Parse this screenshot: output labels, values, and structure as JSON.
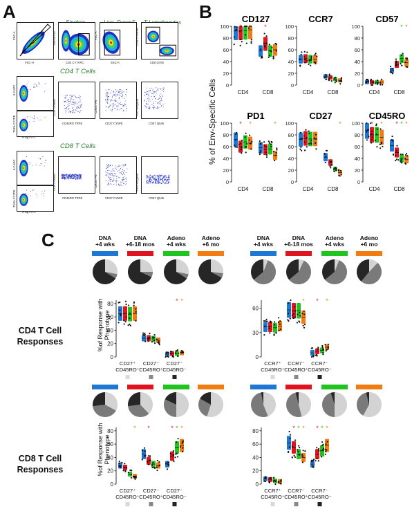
{
  "panel_a": {
    "letter": "A",
    "gates": {
      "singlets": "Singlets",
      "live": "Live, DumpS",
      "tlymph": "T Lymphocytes"
    },
    "cd4_label": "CD4 T Cells",
    "cd8_label": "CD8 T Cells",
    "axes": {
      "fsc_a": "FSC-A",
      "fsc_h": "FSC-H",
      "vivid": "Vivid 8/419",
      "cd3": "CD3 CY7APC",
      "ssc_a": "SSC-A",
      "cd4": "CD4 CY5SPE",
      "cd8": "CD8 Q705",
      "il2": "IL2 APC",
      "tnfa": "TNFa CY7PE",
      "ifng": "IFNg FITC",
      "ccr7": "CCR7 AX680",
      "cd45ro": "CD45RO TRPE",
      "cd157": "CD157 PE",
      "cd27": "CD27 CY5PE",
      "pd1": "PD1 SAQ605",
      "cd57": "CD57 Q545"
    }
  },
  "panel_b": {
    "letter": "B",
    "ylabel": "% of Env-Specific Cells",
    "colors": {
      "dna4": "#1f77d4",
      "dna6": "#e0141e",
      "ad4": "#1fc41f",
      "ad6": "#f07c12"
    }
  },
  "panel_c": {
    "letter": "C",
    "groups": [
      {
        "l1": "DNA",
        "l2": "+4 wks",
        "color": "#1f77d4"
      },
      {
        "l1": "DNA",
        "l2": "+6-18 mos",
        "color": "#e0141e"
      },
      {
        "l1": "Adeno",
        "l2": "+4 wks",
        "color": "#1fc41f"
      },
      {
        "l1": "Adeno",
        "l2": "+6 mo",
        "color": "#f07c12"
      }
    ],
    "cd4_label_1": "CD4 T Cell",
    "cd4_label_2": "Responses",
    "cd8_label_1": "CD8 T Cell",
    "cd8_label_2": "Responses",
    "ylabel_1": "%of Response with",
    "ylabel_2": "Phenotype"
  },
  "chart_data": [
    {
      "type": "scatter",
      "title": "CD127",
      "categories": [
        "CD4",
        "CD8"
      ],
      "ylim": [
        0,
        100
      ],
      "yticks": [
        0,
        20,
        40,
        60,
        80,
        100
      ],
      "series": [
        {
          "color": "#1f77d4",
          "values": [
            92,
            58
          ]
        },
        {
          "color": "#e0141e",
          "values": [
            92,
            70
          ]
        },
        {
          "color": "#1fc41f",
          "values": [
            93,
            58
          ]
        },
        {
          "color": "#f07c12",
          "values": [
            94,
            60
          ]
        }
      ],
      "stars": [
        {
          "cat": 0,
          "series": 1,
          "color": "#e0141e"
        },
        {
          "cat": 0,
          "series": 3,
          "color": "#f07c12"
        },
        {
          "cat": 1,
          "series": 1,
          "color": "#e0141e"
        }
      ]
    },
    {
      "type": "scatter",
      "title": "CCR7",
      "categories": [
        "CD4",
        "CD8"
      ],
      "ylim": [
        0,
        100
      ],
      "yticks": [
        0,
        20,
        40,
        60,
        80,
        100
      ],
      "series": [
        {
          "color": "#1f77d4",
          "values": [
            44,
            15
          ]
        },
        {
          "color": "#e0141e",
          "values": [
            45,
            13
          ]
        },
        {
          "color": "#1fc41f",
          "values": [
            44,
            10
          ]
        },
        {
          "color": "#f07c12",
          "values": [
            44,
            8
          ]
        }
      ],
      "stars": []
    },
    {
      "type": "scatter",
      "title": "CD57",
      "categories": [
        "CD4",
        "CD8"
      ],
      "ylim": [
        0,
        100
      ],
      "yticks": [
        0,
        20,
        40,
        60,
        80,
        100
      ],
      "series": [
        {
          "color": "#1f77d4",
          "values": [
            5,
            25
          ]
        },
        {
          "color": "#e0141e",
          "values": [
            5,
            35
          ]
        },
        {
          "color": "#1fc41f",
          "values": [
            5,
            45
          ]
        },
        {
          "color": "#f07c12",
          "values": [
            5,
            38
          ]
        }
      ],
      "stars": [
        {
          "cat": 1,
          "series": 2,
          "color": "#1fc41f"
        },
        {
          "cat": 1,
          "series": 3,
          "color": "#f07c12"
        }
      ]
    },
    {
      "type": "scatter",
      "title": "PD1",
      "categories": [
        "CD4",
        "CD8"
      ],
      "ylim": [
        0,
        100
      ],
      "yticks": [
        0,
        20,
        40,
        60,
        80,
        100
      ],
      "series": [
        {
          "color": "#1f77d4",
          "values": [
            72,
            58
          ]
        },
        {
          "color": "#e0141e",
          "values": [
            60,
            55
          ]
        },
        {
          "color": "#1fc41f",
          "values": [
            68,
            56
          ]
        },
        {
          "color": "#f07c12",
          "values": [
            66,
            45
          ]
        }
      ],
      "stars": [
        {
          "cat": 0,
          "series": 1,
          "color": "#e0141e"
        },
        {
          "cat": 0,
          "series": 3,
          "color": "#f07c12"
        },
        {
          "cat": 1,
          "series": 3,
          "color": "#f07c12"
        }
      ]
    },
    {
      "type": "scatter",
      "title": "CD27",
      "categories": [
        "CD4",
        "CD8"
      ],
      "ylim": [
        0,
        100
      ],
      "yticks": [
        0,
        20,
        40,
        60,
        80,
        100
      ],
      "series": [
        {
          "color": "#1f77d4",
          "values": [
            72,
            42
          ]
        },
        {
          "color": "#e0141e",
          "values": [
            74,
            33
          ]
        },
        {
          "color": "#1fc41f",
          "values": [
            73,
            22
          ]
        },
        {
          "color": "#f07c12",
          "values": [
            73,
            16
          ]
        }
      ],
      "stars": [
        {
          "cat": 1,
          "series": 3,
          "color": "#f07c12"
        }
      ]
    },
    {
      "type": "scatter",
      "title": "CD45RO",
      "categories": [
        "CD4",
        "CD8"
      ],
      "ylim": [
        0,
        100
      ],
      "yticks": [
        0,
        20,
        40,
        60,
        80,
        100
      ],
      "series": [
        {
          "color": "#1f77d4",
          "values": [
            88,
            62
          ]
        },
        {
          "color": "#e0141e",
          "values": [
            80,
            50
          ]
        },
        {
          "color": "#1fc41f",
          "values": [
            80,
            40
          ]
        },
        {
          "color": "#f07c12",
          "values": [
            76,
            38
          ]
        }
      ],
      "stars": [
        {
          "cat": 0,
          "series": 1,
          "color": "#e0141e"
        },
        {
          "cat": 0,
          "series": 3,
          "color": "#f07c12"
        },
        {
          "cat": 1,
          "series": 1,
          "color": "#e0141e"
        },
        {
          "cat": 1,
          "series": 2,
          "color": "#1fc41f"
        },
        {
          "cat": 1,
          "series": 3,
          "color": "#f07c12"
        }
      ]
    },
    {
      "type": "scatter",
      "categories": [
        "CD27+ CD45RO+",
        "CD27- CD45RO+",
        "CD27- CD45RO-"
      ],
      "cat_l1": [
        "CD27⁺",
        "CD27⁻",
        "CD27⁻"
      ],
      "cat_l2": [
        "CD45RO⁺",
        "CD45RO⁺",
        "CD45RO⁻"
      ],
      "ylim": [
        0,
        85
      ],
      "yticks": [
        0,
        20,
        40,
        60,
        80
      ],
      "series": [
        {
          "color": "#1f77d4",
          "values": [
            65,
            28,
            4
          ]
        },
        {
          "color": "#e0141e",
          "values": [
            65,
            28,
            5
          ]
        },
        {
          "color": "#1fc41f",
          "values": [
            64,
            27,
            5
          ]
        },
        {
          "color": "#f07c12",
          "values": [
            65,
            25,
            6
          ]
        }
      ],
      "stars": [
        {
          "cat": 2,
          "series": 2,
          "color": "#e0141e"
        },
        {
          "cat": 2,
          "series": 3,
          "color": "#f07c12"
        }
      ],
      "pies": [
        [
          0.28,
          0.06,
          0.66
        ],
        [
          0.25,
          0.07,
          0.68
        ],
        [
          0.28,
          0.06,
          0.66
        ],
        [
          0.27,
          0.06,
          0.67
        ]
      ]
    },
    {
      "type": "scatter",
      "categories": [
        "CCR7+ CD45RO+",
        "CCR7- CD45RO+",
        "CCR7- CD45RO-"
      ],
      "cat_l1": [
        "CCR7⁺",
        "CCR7⁻",
        "CCR7⁻"
      ],
      "cat_l2": [
        "CD45RO⁺",
        "CD45RO⁺",
        "CD45RO⁻"
      ],
      "ylim": [
        0,
        70
      ],
      "yticks": [
        0,
        30,
        60
      ],
      "series": [
        {
          "color": "#1f77d4",
          "values": [
            37,
            58,
            5
          ]
        },
        {
          "color": "#e0141e",
          "values": [
            37,
            57,
            7
          ]
        },
        {
          "color": "#1fc41f",
          "values": [
            36,
            57,
            8
          ]
        },
        {
          "color": "#f07c12",
          "values": [
            38,
            49,
            12
          ]
        }
      ],
      "stars": [
        {
          "cat": 1,
          "series": 3,
          "color": "#f07c12"
        },
        {
          "cat": 2,
          "series": 1,
          "color": "#e0141e"
        },
        {
          "cat": 2,
          "series": 3,
          "color": "#f07c12"
        }
      ],
      "pies": [
        [
          0.06,
          0.58,
          0.36
        ],
        [
          0.07,
          0.57,
          0.36
        ],
        [
          0.06,
          0.58,
          0.36
        ],
        [
          0.12,
          0.49,
          0.39
        ]
      ]
    },
    {
      "type": "scatter",
      "categories": [
        "CD27+ CD45RO+",
        "CD27- CD45RO+",
        "CD27- CD45RO-"
      ],
      "cat_l1": [
        "CD27⁺",
        "CD27⁻",
        "CD27⁻"
      ],
      "cat_l2": [
        "CD45RO⁺",
        "CD45RO⁺",
        "CD45RO⁻"
      ],
      "ylim": [
        0,
        85
      ],
      "yticks": [
        0,
        20,
        40,
        60,
        80
      ],
      "series": [
        {
          "color": "#1f77d4",
          "values": [
            28,
            45,
            30
          ]
        },
        {
          "color": "#e0141e",
          "values": [
            25,
            35,
            42
          ]
        },
        {
          "color": "#1fc41f",
          "values": [
            15,
            30,
            55
          ]
        },
        {
          "color": "#f07c12",
          "values": [
            12,
            28,
            58
          ]
        }
      ],
      "stars": [
        {
          "cat": 0,
          "series": 3,
          "color": "#f07c12"
        },
        {
          "cat": 1,
          "series": 1,
          "color": "#e0141e"
        },
        {
          "cat": 2,
          "series": 1,
          "color": "#e0141e"
        },
        {
          "cat": 2,
          "series": 2,
          "color": "#1fc41f"
        },
        {
          "cat": 2,
          "series": 3,
          "color": "#f07c12"
        }
      ],
      "pies": [
        [
          0.33,
          0.4,
          0.27
        ],
        [
          0.38,
          0.35,
          0.27
        ],
        [
          0.5,
          0.32,
          0.18
        ],
        [
          0.55,
          0.28,
          0.17
        ]
      ]
    },
    {
      "type": "scatter",
      "categories": [
        "CCR7+ CD45RO+",
        "CCR7- CD45RO+",
        "CCR7- CD45RO-"
      ],
      "cat_l1": [
        "CCR7⁺",
        "CCR7⁻",
        "CCR7⁻"
      ],
      "cat_l2": [
        "CD45RO⁺",
        "CD45RO⁺",
        "CD45RO⁻"
      ],
      "ylim": [
        0,
        85
      ],
      "yticks": [
        0,
        20,
        40,
        60,
        80
      ],
      "series": [
        {
          "color": "#1f77d4",
          "values": [
            8,
            62,
            30
          ]
        },
        {
          "color": "#e0141e",
          "values": [
            7,
            55,
            45
          ]
        },
        {
          "color": "#1fc41f",
          "values": [
            5,
            45,
            50
          ]
        },
        {
          "color": "#f07c12",
          "values": [
            4,
            40,
            58
          ]
        }
      ],
      "stars": [
        {
          "cat": 1,
          "series": 1,
          "color": "#e0141e"
        },
        {
          "cat": 1,
          "series": 2,
          "color": "#1fc41f"
        },
        {
          "cat": 1,
          "series": 3,
          "color": "#f07c12"
        },
        {
          "cat": 2,
          "series": 1,
          "color": "#e0141e"
        },
        {
          "cat": 2,
          "series": 2,
          "color": "#1fc41f"
        },
        {
          "cat": 2,
          "series": 3,
          "color": "#f07c12"
        }
      ],
      "pies": [
        [
          0.44,
          0.53,
          0.03
        ],
        [
          0.46,
          0.5,
          0.04
        ],
        [
          0.5,
          0.45,
          0.05
        ],
        [
          0.58,
          0.38,
          0.04
        ]
      ]
    }
  ]
}
